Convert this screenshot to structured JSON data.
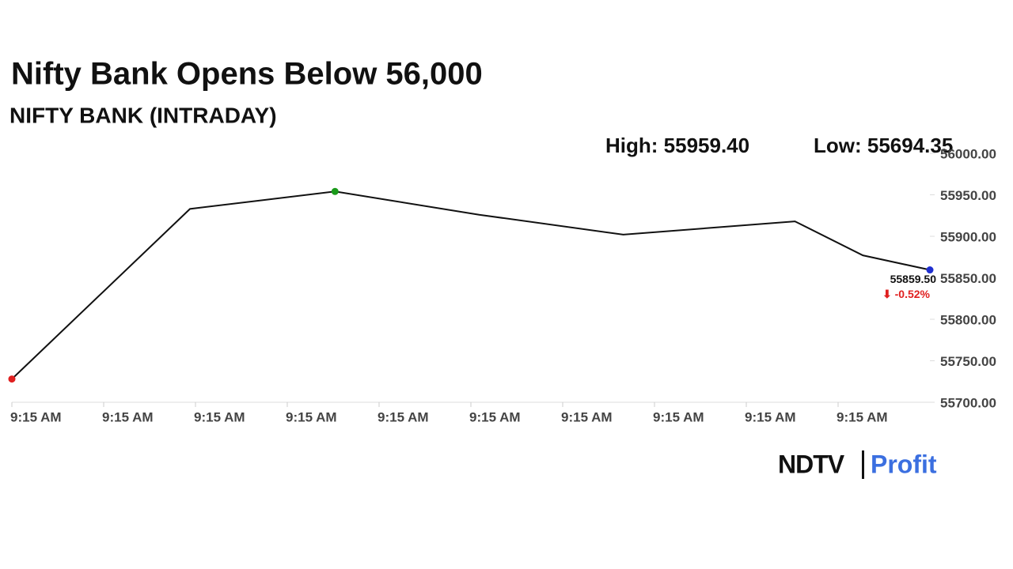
{
  "chart_data": {
    "type": "line",
    "title": "Nifty Bank Opens Below 56,000",
    "subtitle": "NIFTY BANK (INTRADAY)",
    "high_text": "High: 55959.40",
    "low_text": "Low: 55694.35",
    "x": [
      0,
      1.94,
      3.52,
      5.09,
      6.66,
      8.53,
      9.27,
      10
    ],
    "series": [
      {
        "name": "NIFTY BANK",
        "color": "#111111",
        "values": [
          55728,
          55933,
          55954,
          55926,
          55902,
          55918,
          55877,
          55859.5
        ],
        "value_labels": [
          null,
          null,
          null,
          null,
          null,
          null,
          null,
          "55859.50"
        ]
      }
    ],
    "change_label": "⬇ -0.52%",
    "markers": {
      "first": "#e02020",
      "max": "#1a9a1a",
      "last": "#1f2fd0"
    },
    "xlim": [
      0,
      10
    ],
    "xticks": [
      {
        "value": 0,
        "label": "9:15 AM"
      },
      {
        "value": 1,
        "label": "9:15 AM"
      },
      {
        "value": 2,
        "label": "9:15 AM"
      },
      {
        "value": 3,
        "label": "9:15 AM"
      },
      {
        "value": 4,
        "label": "9:15 AM"
      },
      {
        "value": 5,
        "label": "9:15 AM"
      },
      {
        "value": 6,
        "label": "9:15 AM"
      },
      {
        "value": 7,
        "label": "9:15 AM"
      },
      {
        "value": 8,
        "label": "9:15 AM"
      },
      {
        "value": 9,
        "label": "9:15 AM"
      }
    ],
    "ylim": [
      55700,
      56000
    ],
    "yticks": [
      {
        "value": 55700,
        "label": "55700.00"
      },
      {
        "value": 55750,
        "label": "55750.00"
      },
      {
        "value": 55800,
        "label": "55800.00"
      },
      {
        "value": 55850,
        "label": "55850.00"
      },
      {
        "value": 55900,
        "label": "55900.00"
      },
      {
        "value": 55950,
        "label": "55950.00"
      },
      {
        "value": 56000,
        "label": "56000.00"
      }
    ]
  },
  "logo": {
    "left": "NDTV",
    "right": "Profit"
  }
}
